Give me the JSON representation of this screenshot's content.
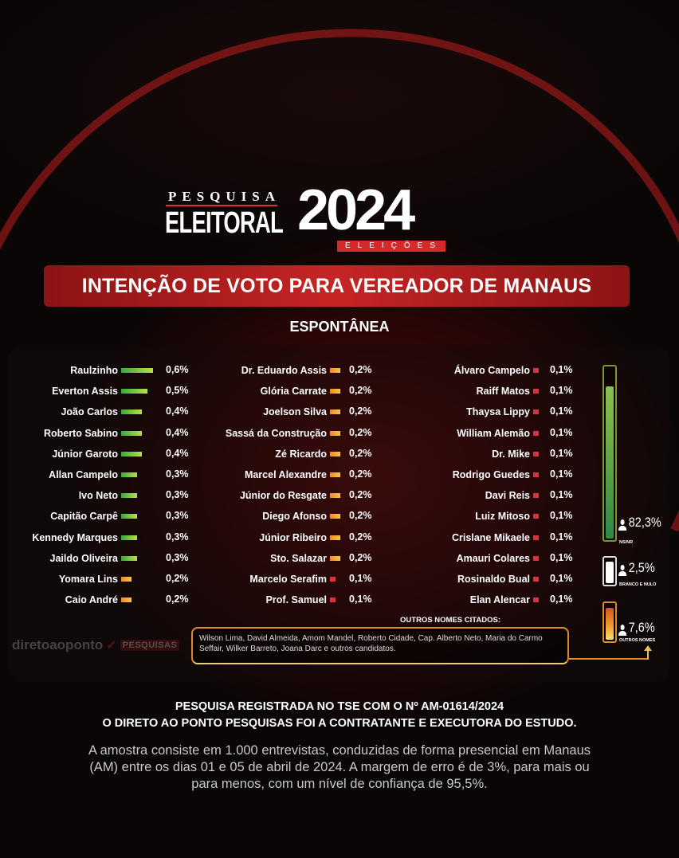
{
  "header": {
    "pesquisa": "PESQUISA",
    "eleitoral": "ELEITORAL",
    "year": "2024",
    "eleicoes": "ELEIÇÕES"
  },
  "title": "INTENÇÃO DE VOTO PARA VEREADOR DE MANAUS",
  "subtitle": "ESPONTÂNEA",
  "colors": {
    "high": "#4fb83a",
    "mid": "#f0a52a",
    "low": "#e0303a",
    "banner": "#c62525"
  },
  "chart_data": {
    "type": "bar",
    "title": "INTENÇÃO DE VOTO PARA VEREADOR DE MANAUS",
    "subtitle": "ESPONTÂNEA",
    "columns": [
      [
        {
          "name": "Raulzinho",
          "value": 0.6,
          "label": "0,6%"
        },
        {
          "name": "Everton Assis",
          "value": 0.5,
          "label": "0,5%"
        },
        {
          "name": "João Carlos",
          "value": 0.4,
          "label": "0,4%"
        },
        {
          "name": "Roberto Sabino",
          "value": 0.4,
          "label": "0,4%"
        },
        {
          "name": "Júnior Garoto",
          "value": 0.4,
          "label": "0,4%"
        },
        {
          "name": "Allan Campelo",
          "value": 0.3,
          "label": "0,3%"
        },
        {
          "name": "Ivo Neto",
          "value": 0.3,
          "label": "0,3%"
        },
        {
          "name": "Capitão Carpê",
          "value": 0.3,
          "label": "0,3%"
        },
        {
          "name": "Kennedy Marques",
          "value": 0.3,
          "label": "0,3%"
        },
        {
          "name": "Jaildo Oliveira",
          "value": 0.3,
          "label": "0,3%"
        },
        {
          "name": "Yomara Lins",
          "value": 0.2,
          "label": "0,2%"
        },
        {
          "name": "Caio André",
          "value": 0.2,
          "label": "0,2%"
        }
      ],
      [
        {
          "name": "Dr. Eduardo Assis",
          "value": 0.2,
          "label": "0,2%"
        },
        {
          "name": "Glória Carrate",
          "value": 0.2,
          "label": "0,2%"
        },
        {
          "name": "Joelson Silva",
          "value": 0.2,
          "label": "0,2%"
        },
        {
          "name": "Sassá da Construção",
          "value": 0.2,
          "label": "0,2%"
        },
        {
          "name": "Zé Ricardo",
          "value": 0.2,
          "label": "0,2%"
        },
        {
          "name": "Marcel Alexandre",
          "value": 0.2,
          "label": "0,2%"
        },
        {
          "name": "Júnior do Resgate",
          "value": 0.2,
          "label": "0,2%"
        },
        {
          "name": "Diego Afonso",
          "value": 0.2,
          "label": "0,2%"
        },
        {
          "name": "Júnior Ribeiro",
          "value": 0.2,
          "label": "0,2%"
        },
        {
          "name": "Sto. Salazar",
          "value": 0.2,
          "label": "0,2%"
        },
        {
          "name": "Marcelo Serafim",
          "value": 0.1,
          "label": "0,1%"
        },
        {
          "name": "Prof. Samuel",
          "value": 0.1,
          "label": "0,1%"
        }
      ],
      [
        {
          "name": "Álvaro Campelo",
          "value": 0.1,
          "label": "0,1%"
        },
        {
          "name": "Raiff Matos",
          "value": 0.1,
          "label": "0,1%"
        },
        {
          "name": "Thaysa Lippy",
          "value": 0.1,
          "label": "0,1%"
        },
        {
          "name": "William Alemão",
          "value": 0.1,
          "label": "0,1%"
        },
        {
          "name": "Dr. Mike",
          "value": 0.1,
          "label": "0,1%"
        },
        {
          "name": "Rodrigo Guedes",
          "value": 0.1,
          "label": "0,1%"
        },
        {
          "name": "Davi Reis",
          "value": 0.1,
          "label": "0,1%"
        },
        {
          "name": "Luiz Mitoso",
          "value": 0.1,
          "label": "0,1%"
        },
        {
          "name": "Crislane Mikaele",
          "value": 0.1,
          "label": "0,1%"
        },
        {
          "name": "Amauri Colares",
          "value": 0.1,
          "label": "0,1%"
        },
        {
          "name": "Rosinaldo Bual",
          "value": 0.1,
          "label": "0,1%"
        },
        {
          "name": "Elan Alencar",
          "value": 0.1,
          "label": "0,1%"
        }
      ]
    ],
    "summary": [
      {
        "name": "NS/NR",
        "value": 82.3,
        "label": "82,3%"
      },
      {
        "name": "BRANCO E NULO",
        "value": 2.5,
        "label": "2,5%"
      },
      {
        "name": "OUTROS NOMES",
        "value": 7.6,
        "label": "7,6%"
      }
    ]
  },
  "outros": {
    "title": "OUTROS NOMES CITADOS:",
    "text": "Wilson Lima, David Almeida, Amom Mandel, Roberto Cidade, Cap. Alberto Neto, Maria do Carmo Seffair, Wilker Barreto, Joana Darc e outros candidatos."
  },
  "logo": {
    "wordmark": "diretoaoponto",
    "tag": "PESQUISAS"
  },
  "footer": {
    "line1": "PESQUISA REGISTRADA NO TSE COM O Nº AM-01614/2024",
    "line2": "O DIRETO AO PONTO PESQUISAS FOI A CONTRATANTE E EXECUTORA DO ESTUDO.",
    "text": "A amostra consiste em 1.000 entrevistas, conduzidas de forma presencial em Manaus (AM) entre os dias 01 e 05 de abril de 2024. A margem de erro é de 3%, para mais ou para menos, com um nível de confiança de 95,5%."
  }
}
